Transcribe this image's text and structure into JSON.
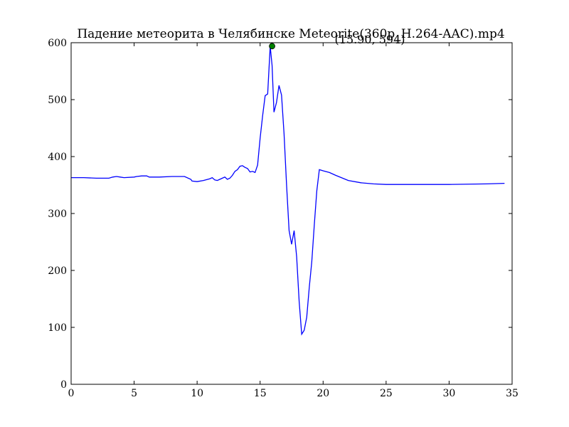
{
  "chart_data": {
    "type": "line",
    "title": "Падение метеорита в Челябинске Meteorite(360p_H.264-AAC).mp4",
    "xlabel": "",
    "ylabel": "",
    "xlim": [
      0,
      35
    ],
    "ylim": [
      0,
      600
    ],
    "x_ticks": [
      0,
      5,
      10,
      15,
      20,
      25,
      30,
      35
    ],
    "y_ticks": [
      0,
      100,
      200,
      300,
      400,
      500,
      600
    ],
    "grid": false,
    "line_color": "#0000ff",
    "marker_color": "#008000",
    "series": [
      {
        "x": [
          0,
          1,
          2,
          3,
          3.3,
          3.6,
          3.9,
          4.2,
          5,
          5.2,
          5.6,
          6,
          6.2,
          6.4,
          7,
          8,
          9,
          9.5,
          9.6,
          10,
          10.5,
          11,
          11.2,
          11.4,
          11.6,
          11.8,
          12,
          12.2,
          12.4,
          12.6,
          12.8,
          13,
          13.2,
          13.4,
          13.6,
          13.8,
          14,
          14.2,
          14.4,
          14.6,
          14.8,
          15,
          15.2,
          15.4,
          15.6,
          15.8,
          15.95,
          16.1,
          16.3,
          16.5,
          16.7,
          16.9,
          17.1,
          17.3,
          17.5,
          17.7,
          17.9,
          18.1,
          18.3,
          18.5,
          18.7,
          18.9,
          19.1,
          19.3,
          19.5,
          19.7,
          20,
          20.5,
          21,
          22,
          23,
          24,
          25,
          27,
          30,
          33,
          34.4
        ],
        "y": [
          363,
          363,
          362,
          362,
          364,
          365,
          364,
          363,
          364,
          365,
          366,
          366,
          364,
          364,
          364,
          365,
          365,
          360,
          357,
          356,
          358,
          361,
          363,
          359,
          358,
          360,
          362,
          364,
          360,
          362,
          367,
          374,
          377,
          383,
          384,
          381,
          379,
          373,
          374,
          372,
          385,
          432,
          472,
          507,
          510,
          594,
          560,
          478,
          495,
          525,
          508,
          440,
          350,
          270,
          246,
          270,
          224,
          145,
          88,
          95,
          118,
          170,
          215,
          280,
          340,
          377,
          375,
          372,
          367,
          358,
          354,
          352,
          351,
          351,
          351,
          352,
          353
        ]
      }
    ],
    "annotations": [
      {
        "x": 15.95,
        "y": 594,
        "text": "(15.90, 594)"
      }
    ]
  }
}
